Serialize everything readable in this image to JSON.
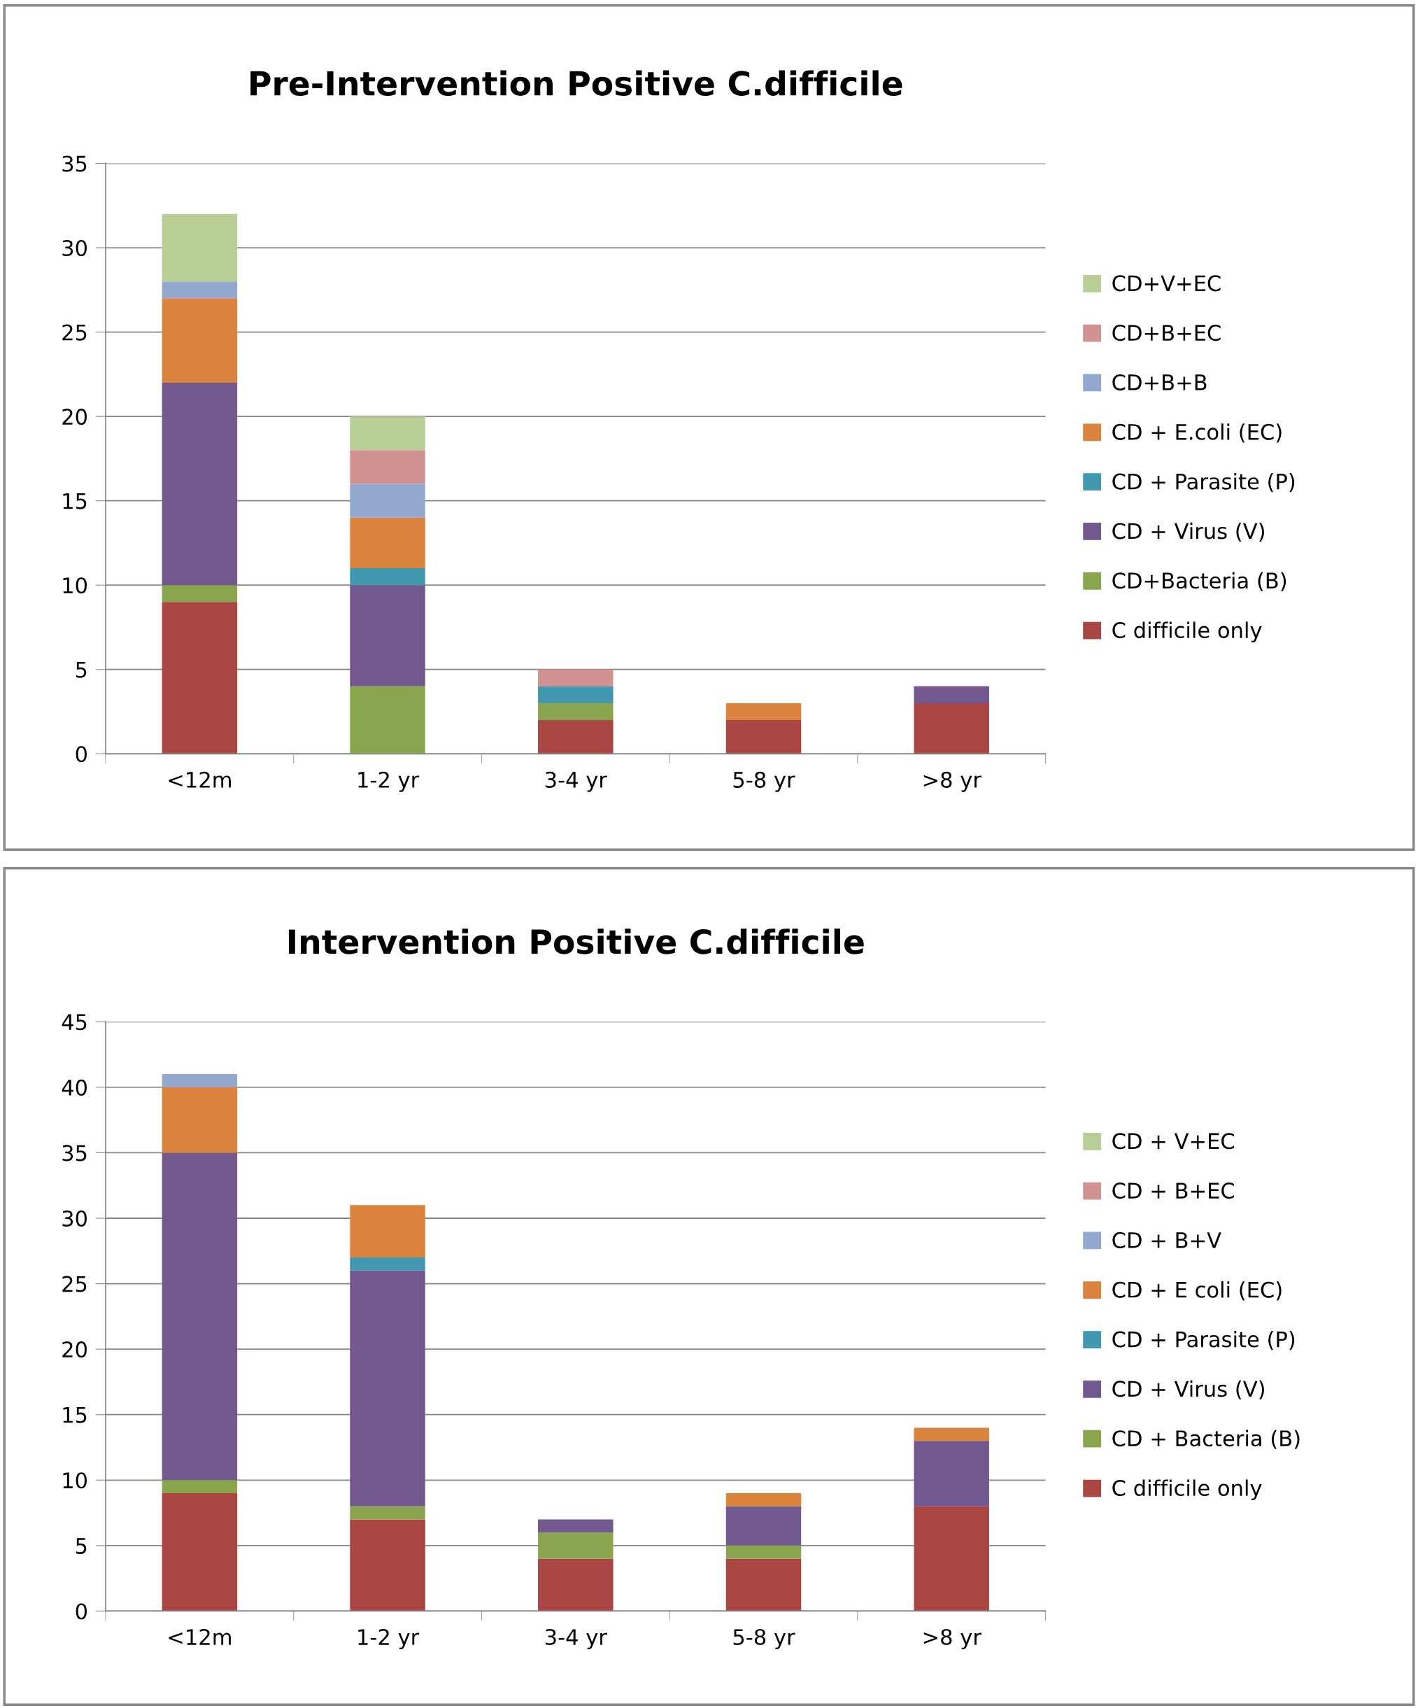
{
  "chart_data": [
    {
      "type": "bar",
      "title": "Pre-Intervention Positive C.difficile",
      "stacked": true,
      "categories": [
        "<12m",
        "1-2 yr",
        "3-4 yr",
        "5-8 yr",
        ">8 yr"
      ],
      "ylim": [
        0,
        35
      ],
      "yticks": [
        0,
        5,
        10,
        15,
        20,
        25,
        30,
        35
      ],
      "grid": "y",
      "legend": "right",
      "series": [
        {
          "name": "C difficile only",
          "color": "#aa4643",
          "values": [
            9,
            0,
            2,
            2,
            3
          ]
        },
        {
          "name": "CD+Bacteria (B)",
          "color": "#89a54e",
          "values": [
            1,
            4,
            1,
            0,
            0
          ]
        },
        {
          "name": "CD + Virus (V)",
          "color": "#71588f",
          "values": [
            12,
            6,
            0,
            0,
            1
          ]
        },
        {
          "name": "CD + Parasite (P)",
          "color": "#4198af",
          "values": [
            0,
            1,
            1,
            0,
            0
          ]
        },
        {
          "name": "CD + E.coli (EC)",
          "color": "#db843d",
          "values": [
            5,
            3,
            0,
            1,
            0
          ]
        },
        {
          "name": "CD+B+B",
          "color": "#93a9cf",
          "values": [
            1,
            2,
            0,
            0,
            0
          ]
        },
        {
          "name": "CD+B+EC",
          "color": "#d19392",
          "values": [
            0,
            2,
            1,
            0,
            0
          ]
        },
        {
          "name": "CD+V+EC",
          "color": "#b9cd96",
          "values": [
            4,
            2,
            0,
            0,
            0
          ]
        }
      ]
    },
    {
      "type": "bar",
      "title": "Intervention Positive C.difficile",
      "stacked": true,
      "categories": [
        "<12m",
        "1-2 yr",
        "3-4 yr",
        "5-8 yr",
        ">8 yr"
      ],
      "ylim": [
        0,
        45
      ],
      "yticks": [
        0,
        5,
        10,
        15,
        20,
        25,
        30,
        35,
        40,
        45
      ],
      "grid": "y",
      "legend": "right",
      "series": [
        {
          "name": "C difficile only",
          "color": "#aa4643",
          "values": [
            9,
            7,
            4,
            4,
            8
          ]
        },
        {
          "name": "CD + Bacteria (B)",
          "color": "#89a54e",
          "values": [
            1,
            1,
            2,
            1,
            0
          ]
        },
        {
          "name": "CD + Virus (V)",
          "color": "#71588f",
          "values": [
            25,
            18,
            1,
            3,
            5
          ]
        },
        {
          "name": "CD + Parasite (P)",
          "color": "#4198af",
          "values": [
            0,
            1,
            0,
            0,
            0
          ]
        },
        {
          "name": "CD + E coli (EC)",
          "color": "#db843d",
          "values": [
            5,
            4,
            0,
            1,
            1
          ]
        },
        {
          "name": "CD + B+V",
          "color": "#93a9cf",
          "values": [
            1,
            0,
            0,
            0,
            0
          ]
        },
        {
          "name": "CD + B+EC",
          "color": "#d19392",
          "values": [
            0,
            0,
            0,
            0,
            0
          ]
        },
        {
          "name": "CD + V+EC",
          "color": "#b9cd96",
          "values": [
            0,
            0,
            0,
            0,
            0
          ]
        }
      ]
    }
  ]
}
